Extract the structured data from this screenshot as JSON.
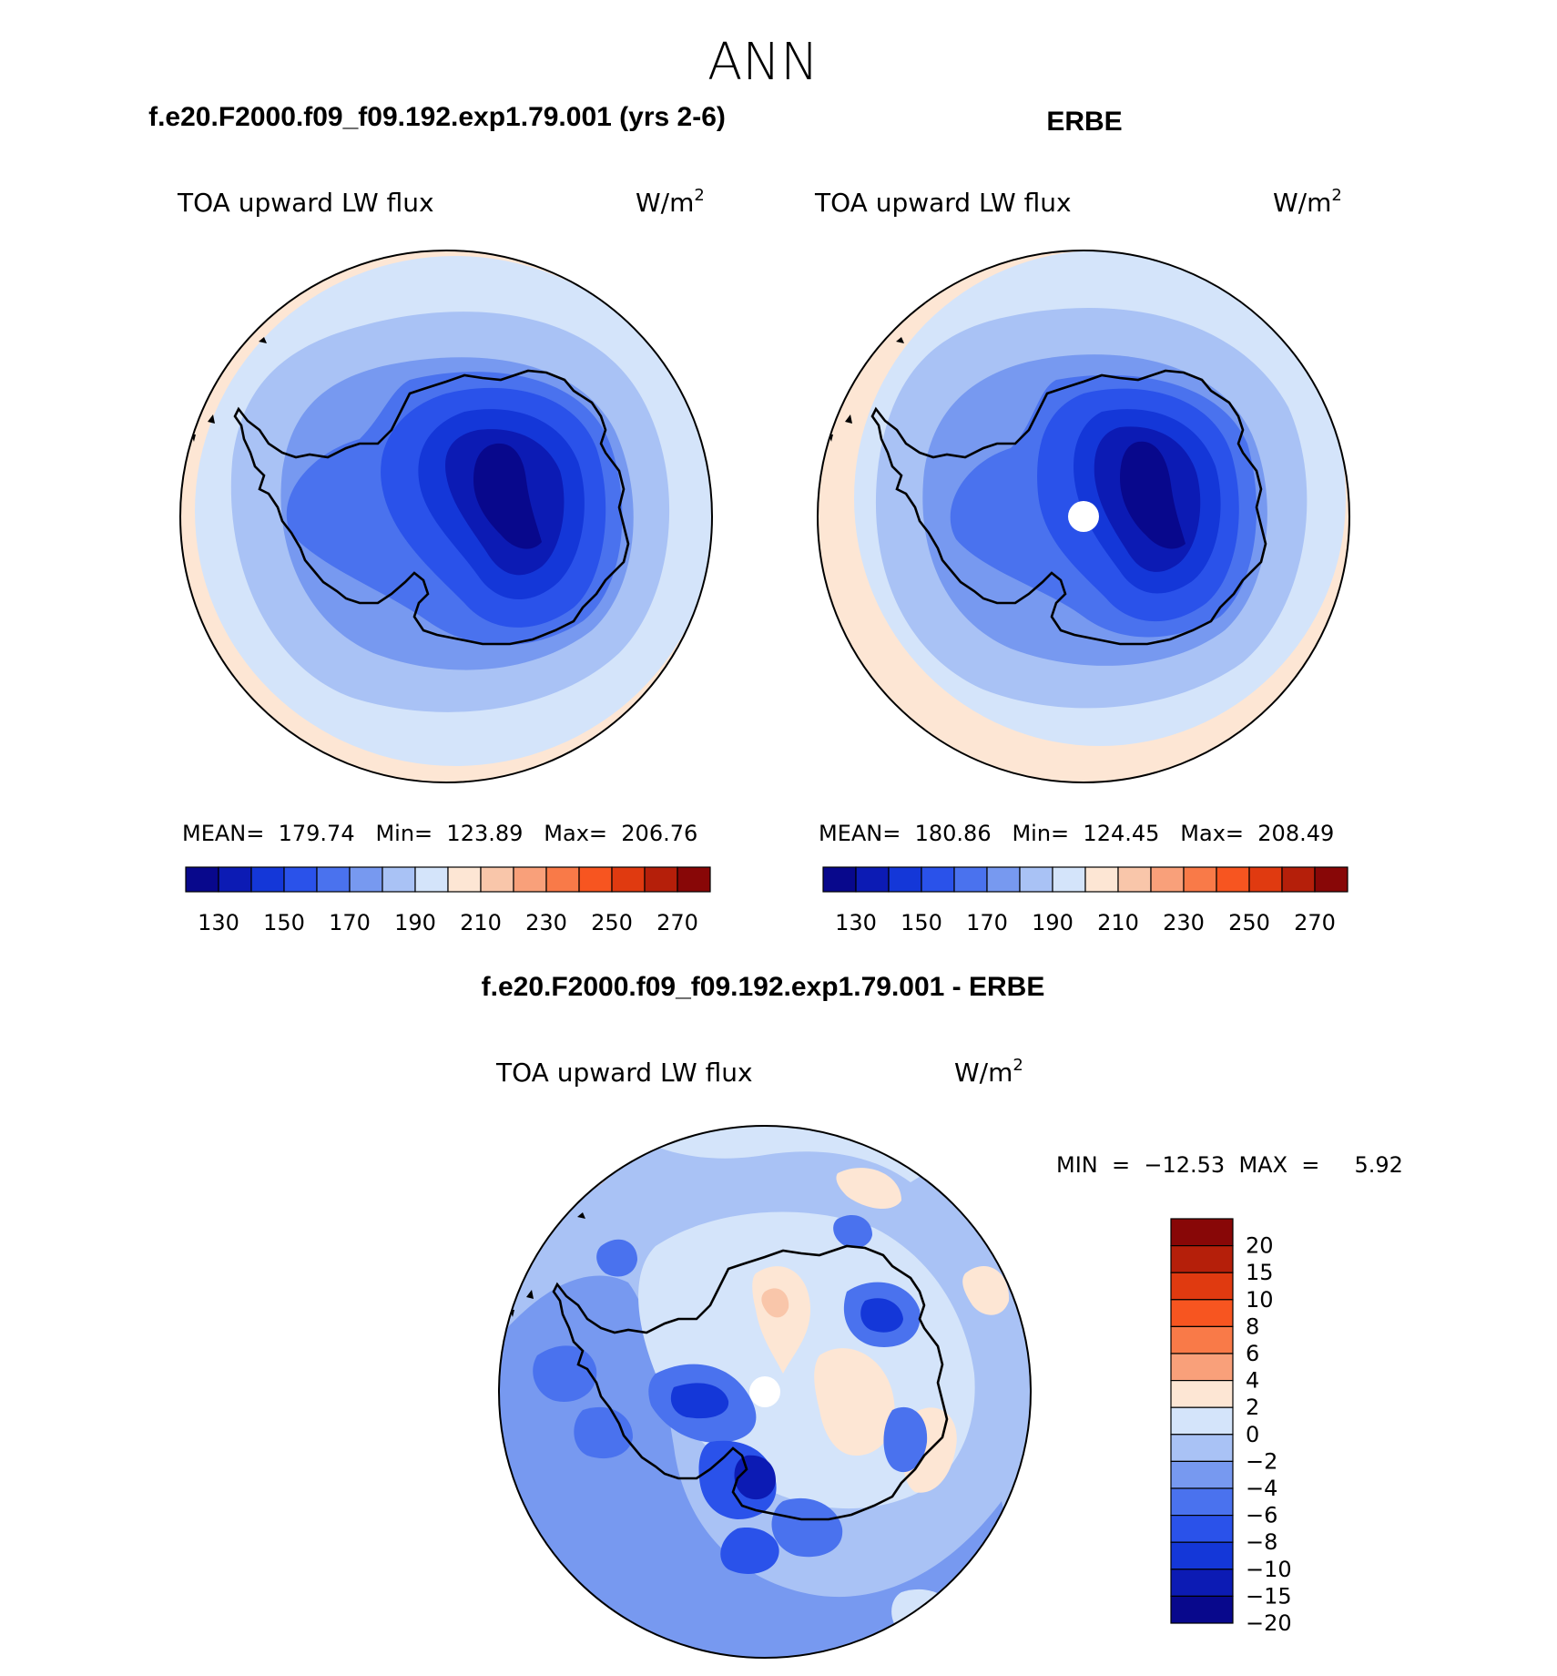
{
  "page": {
    "title": "ANN"
  },
  "panels": [
    {
      "id": "model",
      "title": "f.e20.F2000.f09_f09.192.exp1.79.001 (yrs 2-6)",
      "variable": "TOA upward LW flux",
      "units_base": "W/m",
      "units_exp": "2",
      "stats": "MEAN=  179.74   Min=  123.89   Max=  206.76",
      "has_pole_hole": false
    },
    {
      "id": "obs",
      "title": "ERBE",
      "variable": "TOA upward LW flux",
      "units_base": "W/m",
      "units_exp": "2",
      "stats": "MEAN=  180.86   Min=  124.45   Max=  208.49",
      "has_pole_hole": true
    }
  ],
  "abs_colorbar": {
    "colors": [
      "#08088c",
      "#0c1bb4",
      "#1437d8",
      "#2a52ea",
      "#4a72ee",
      "#7799f0",
      "#a9c2f5",
      "#d4e4fa",
      "#fde6d4",
      "#f9c6aa",
      "#f9a07a",
      "#f97a48",
      "#f75520",
      "#e03a10",
      "#b51f0a",
      "#880707"
    ],
    "tick_labels": [
      "130",
      "150",
      "170",
      "190",
      "210",
      "230",
      "250",
      "270"
    ]
  },
  "diff_panel": {
    "title": "f.e20.F2000.f09_f09.192.exp1.79.001 - ERBE",
    "variable": "TOA upward LW flux",
    "units_base": "W/m",
    "units_exp": "2",
    "minmax": "MIN  =  −12.53  MAX  =     5.92",
    "has_pole_hole": true
  },
  "diff_colorbar": {
    "colors": [
      "#880707",
      "#b51f0a",
      "#e03a10",
      "#f75520",
      "#f97a48",
      "#f9a07a",
      "#fde6d4",
      "#d4e4fa",
      "#a9c2f5",
      "#7799f0",
      "#4a72ee",
      "#2a52ea",
      "#1437d8",
      "#0c1bb4",
      "#08088c"
    ],
    "tick_labels": [
      "20",
      "15",
      "10",
      "8",
      "6",
      "4",
      "2",
      "0",
      "−2",
      "−4",
      "−6",
      "−8",
      "−10",
      "−15",
      "−20"
    ]
  }
}
